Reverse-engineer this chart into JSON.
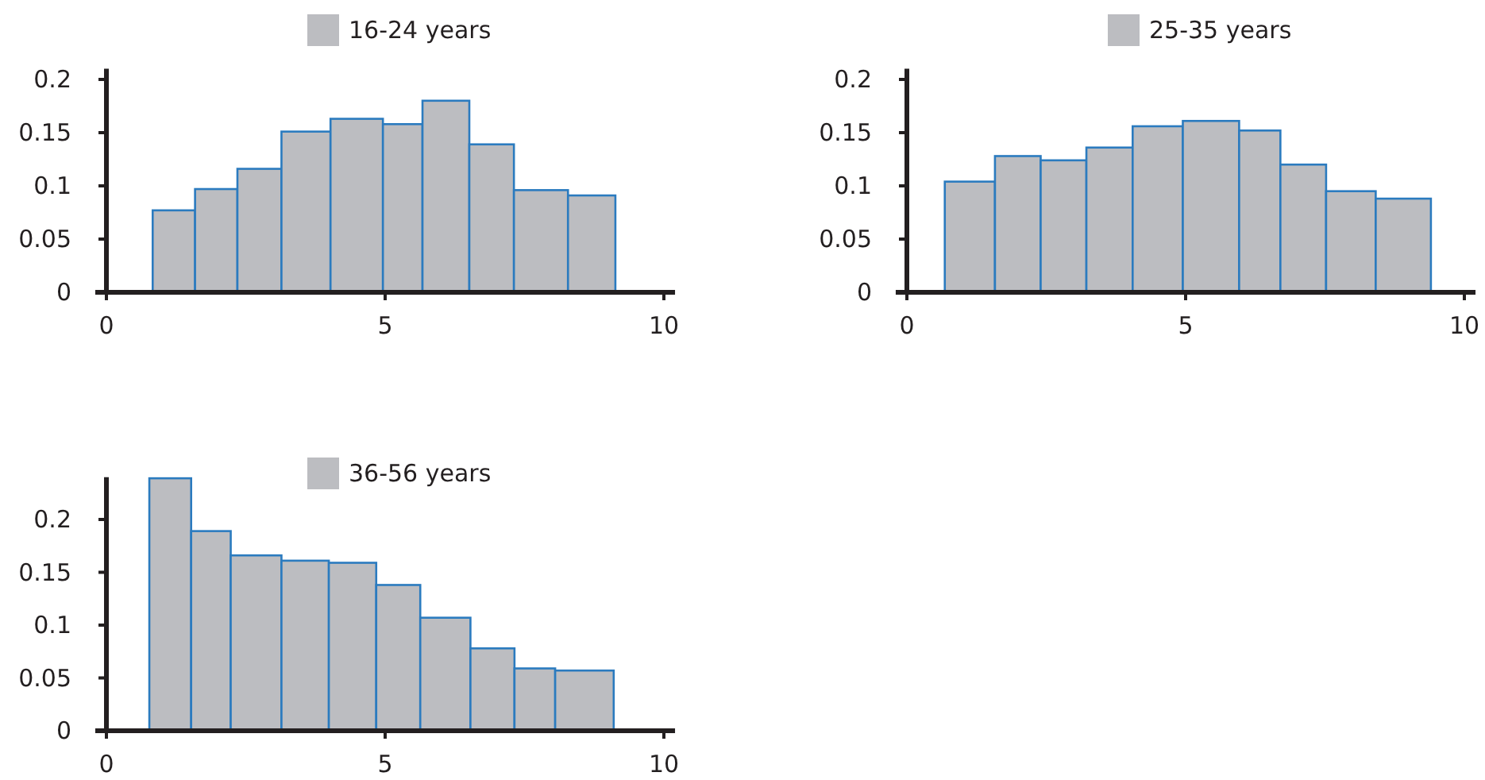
{
  "chart_data": [
    {
      "type": "histogram",
      "bins": [
        0.83,
        1.59,
        2.35,
        3.14,
        4.02,
        4.96,
        5.67,
        6.51,
        7.31,
        8.28,
        9.13
      ],
      "series": [
        {
          "name": "16-24 years",
          "color": "#bcbdc1",
          "values": [
            0.077,
            0.097,
            0.116,
            0.151,
            0.163,
            0.158,
            0.18,
            0.139,
            0.096,
            0.091
          ]
        }
      ],
      "xlim": [
        -0.2,
        10.2
      ],
      "xticks": [
        0,
        5,
        10
      ],
      "ylim": [
        0,
        0.21
      ],
      "yticks": [
        0,
        0.05,
        0.1,
        0.15,
        0.2
      ],
      "legend": "top",
      "grid": false
    },
    {
      "type": "histogram",
      "bins": [
        0.68,
        1.58,
        2.4,
        3.22,
        4.05,
        4.95,
        5.96,
        6.7,
        7.52,
        8.41,
        9.4
      ],
      "series": [
        {
          "name": "25-35 years",
          "color": "#bcbdc1",
          "values": [
            0.104,
            0.128,
            0.124,
            0.136,
            0.156,
            0.161,
            0.152,
            0.12,
            0.095,
            0.088
          ]
        }
      ],
      "xlim": [
        -0.2,
        10.2
      ],
      "xticks": [
        0,
        5,
        10
      ],
      "ylim": [
        0,
        0.21
      ],
      "yticks": [
        0,
        0.05,
        0.1,
        0.15,
        0.2
      ],
      "legend": "top",
      "grid": false
    },
    {
      "type": "histogram",
      "bins": [
        0.77,
        1.52,
        2.23,
        3.14,
        3.99,
        4.84,
        5.63,
        6.53,
        7.32,
        8.05,
        9.1
      ],
      "series": [
        {
          "name": "36-56 years",
          "color": "#bcbdc1",
          "values": [
            0.239,
            0.189,
            0.166,
            0.161,
            0.159,
            0.138,
            0.107,
            0.078,
            0.059,
            0.057
          ]
        }
      ],
      "xlim": [
        -0.2,
        10.2
      ],
      "xticks": [
        0,
        5,
        10
      ],
      "ylim": [
        0,
        0.24
      ],
      "yticks": [
        0,
        0.05,
        0.1,
        0.15,
        0.2
      ],
      "legend": "top",
      "grid": false
    }
  ]
}
